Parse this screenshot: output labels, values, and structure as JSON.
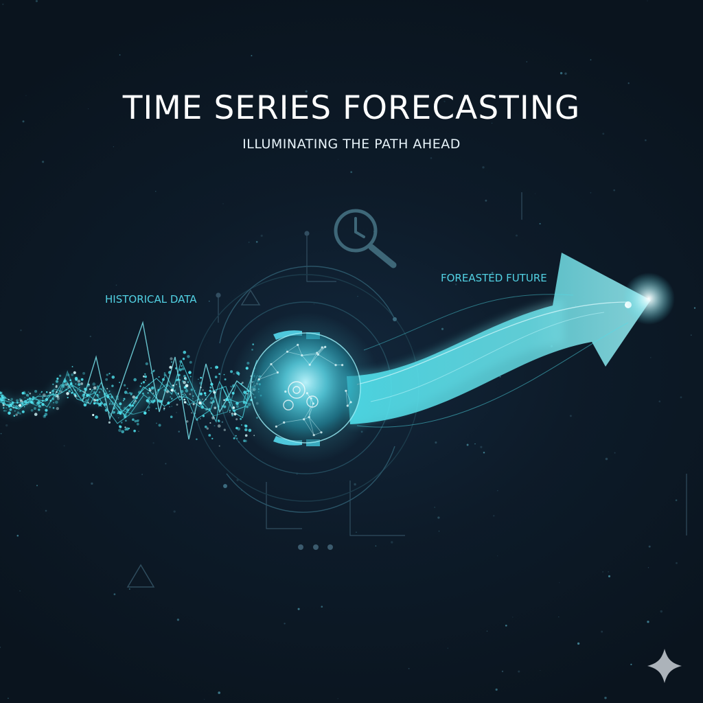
{
  "header": {
    "title": "TIME SERIES FORECASTING",
    "subtitle": "ILLUMINATING THE PATH AHEAD"
  },
  "labels": {
    "historical": "HISTORICAL DATA",
    "forecast": "FOREASTED FUTURE"
  },
  "icons": {
    "top": "clock-magnifier-icon",
    "center": "data-sphere-gears-icon",
    "arrow": "forecast-arrow-icon",
    "corner": "sparkle-icon"
  },
  "colors": {
    "background": "#0c1722",
    "accent": "#4fe0ec",
    "accent_dim": "#2a8fa2",
    "text": "#ffffff",
    "label": "#52d2e4"
  }
}
